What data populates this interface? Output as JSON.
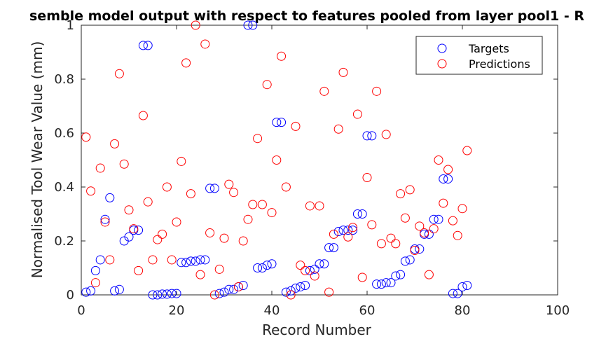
{
  "chart_data": {
    "type": "scatter",
    "title": "semble model output with respect to features pooled from layer pool1 - R",
    "xlabel": "Record Number",
    "ylabel": "Normalised Tool Wear Value (mm)",
    "xlim": [
      0,
      100
    ],
    "ylim": [
      0,
      1
    ],
    "xticks": [
      "0",
      "20",
      "40",
      "60",
      "80",
      "100"
    ],
    "yticks": [
      "0",
      "0.2",
      "0.4",
      "0.6",
      "0.8",
      "1"
    ],
    "grid": false,
    "legend_position": "top-right",
    "series": [
      {
        "name": "Targets",
        "color": "#0000ff",
        "x": [
          1,
          2,
          3,
          4,
          5,
          6,
          7,
          8,
          9,
          10,
          11,
          12,
          13,
          14,
          15,
          16,
          17,
          18,
          19,
          20,
          21,
          22,
          23,
          24,
          25,
          26,
          27,
          28,
          29,
          30,
          31,
          32,
          33,
          34,
          35,
          36,
          37,
          38,
          39,
          40,
          41,
          42,
          43,
          44,
          45,
          46,
          47,
          48,
          49,
          50,
          51,
          52,
          53,
          54,
          55,
          56,
          57,
          58,
          59,
          60,
          61,
          62,
          63,
          64,
          65,
          66,
          67,
          68,
          69,
          70,
          71,
          72,
          73,
          74,
          75,
          76,
          77,
          78,
          79,
          80,
          81
        ],
        "y": [
          0.01,
          0.015,
          0.09,
          0.13,
          0.28,
          0.36,
          0.015,
          0.02,
          0.2,
          0.215,
          0.24,
          0.24,
          0.925,
          0.925,
          0.0,
          0.0,
          0.003,
          0.003,
          0.005,
          0.005,
          0.12,
          0.12,
          0.125,
          0.125,
          0.13,
          0.13,
          0.395,
          0.395,
          0.005,
          0.01,
          0.02,
          0.02,
          0.03,
          0.035,
          1.0,
          1.0,
          0.1,
          0.1,
          0.11,
          0.115,
          0.64,
          0.64,
          0.01,
          0.015,
          0.025,
          0.03,
          0.035,
          0.09,
          0.095,
          0.115,
          0.115,
          0.175,
          0.175,
          0.235,
          0.24,
          0.24,
          0.24,
          0.3,
          0.3,
          0.59,
          0.59,
          0.04,
          0.04,
          0.045,
          0.045,
          0.07,
          0.075,
          0.125,
          0.13,
          0.17,
          0.17,
          0.225,
          0.225,
          0.28,
          0.28,
          0.43,
          0.43,
          0.005,
          0.005,
          0.03,
          0.035
        ]
      },
      {
        "name": "Predictions",
        "color": "#ff0000",
        "x": [
          1,
          2,
          3,
          4,
          5,
          6,
          7,
          8,
          9,
          10,
          11,
          12,
          13,
          14,
          15,
          16,
          17,
          18,
          19,
          20,
          21,
          22,
          23,
          24,
          25,
          26,
          27,
          28,
          29,
          30,
          31,
          32,
          33,
          34,
          35,
          36,
          37,
          38,
          39,
          40,
          41,
          42,
          43,
          44,
          45,
          46,
          47,
          48,
          49,
          50,
          51,
          52,
          53,
          54,
          55,
          56,
          57,
          58,
          59,
          60,
          61,
          62,
          63,
          64,
          65,
          66,
          67,
          68,
          69,
          70,
          71,
          72,
          73,
          74,
          75,
          76,
          77,
          78,
          79,
          80,
          81
        ],
        "y": [
          0.585,
          0.385,
          0.045,
          0.47,
          0.27,
          0.13,
          0.56,
          0.82,
          0.485,
          0.315,
          0.245,
          0.09,
          0.665,
          0.345,
          0.13,
          0.205,
          0.225,
          0.4,
          0.13,
          0.27,
          0.495,
          0.86,
          0.375,
          1.0,
          0.075,
          0.93,
          0.23,
          0.0,
          0.095,
          0.21,
          0.41,
          0.38,
          0.03,
          0.2,
          0.28,
          0.335,
          0.58,
          0.335,
          0.78,
          0.305,
          0.5,
          0.885,
          0.4,
          0.0,
          0.625,
          0.11,
          0.09,
          0.33,
          0.07,
          0.33,
          0.755,
          0.01,
          0.225,
          0.615,
          0.825,
          0.215,
          0.25,
          0.67,
          0.065,
          0.435,
          0.26,
          0.755,
          0.19,
          0.595,
          0.21,
          0.19,
          0.375,
          0.285,
          0.39,
          0.165,
          0.255,
          0.23,
          0.075,
          0.245,
          0.5,
          0.34,
          0.465,
          0.275,
          0.22,
          0.32,
          0.535
        ]
      }
    ]
  }
}
